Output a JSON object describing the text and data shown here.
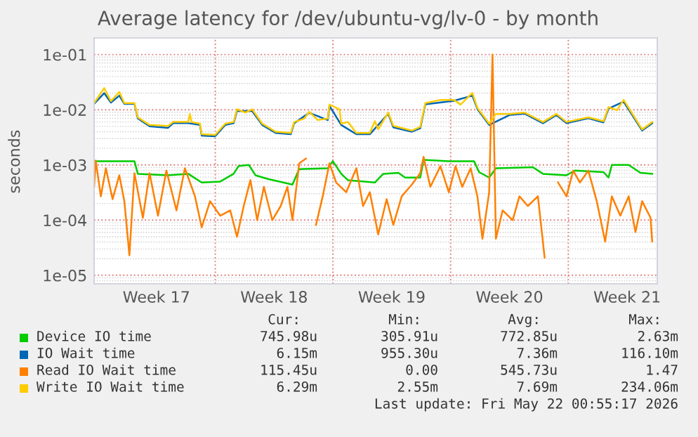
{
  "chart_data": {
    "type": "line",
    "title": "Average latency for /dev/ubuntu-vg/lv-0 - by month",
    "ylabel": "seconds",
    "log": "y",
    "grid": true,
    "legend": "bottom",
    "xlim": [
      "2026-04-18T19:00",
      "2026-05-22T07:00"
    ],
    "ylim": [
      7e-06,
      0.2
    ],
    "xticks": [
      {
        "value": "2026-04-22T12:00",
        "label": "Week 17"
      },
      {
        "value": "2026-04-26",
        "label": null
      },
      {
        "value": "2026-04-29T12:00",
        "label": "Week 18"
      },
      {
        "value": "2026-05-03",
        "label": null
      },
      {
        "value": "2026-05-06T12:00",
        "label": "Week 19"
      },
      {
        "value": "2026-05-10",
        "label": null
      },
      {
        "value": "2026-05-13T12:00",
        "label": "Week 20"
      },
      {
        "value": "2026-05-17",
        "label": null
      },
      {
        "value": "2026-05-20T12:00",
        "label": "Week 21"
      }
    ],
    "yticks": [
      {
        "value": 1e-05,
        "label": "1e-05"
      },
      {
        "value": 0.0001,
        "label": "1e-04"
      },
      {
        "value": 0.001,
        "label": "1e-03"
      },
      {
        "value": 0.01,
        "label": "1e-02"
      },
      {
        "value": 0.1,
        "label": "1e-01"
      }
    ],
    "series": [
      {
        "name": "Device IO time",
        "color": "#00cc00",
        "x": [
          "2026-04-18T19:00",
          "2026-04-21T04:36",
          "2026-04-21T09:24",
          "2026-04-23T04:36",
          "2026-04-24T09:24",
          "2026-04-25T04:36",
          "2026-04-26T07:00",
          "2026-04-27T02:12",
          "2026-04-27T09:24",
          "2026-04-27T23:48",
          "2026-04-28T09:24",
          "2026-04-29T02:12",
          "2026-04-30T14:12",
          "2026-04-30T23:48",
          "2026-05-02T16:36",
          "2026-05-02T23:48",
          "2026-05-03T11:48",
          "2026-05-03T21:24",
          "2026-05-05T11:48",
          "2026-05-05T23:48",
          "2026-05-06T21:24",
          "2026-05-07T07:00",
          "2026-05-08T04:36",
          "2026-05-08T09:24",
          "2026-05-09T21:24",
          "2026-05-11T09:24",
          "2026-05-11T16:36",
          "2026-05-12T07:00",
          "2026-05-12T16:36",
          "2026-05-14T21:24",
          "2026-05-15T11:48",
          "2026-05-16T21:24",
          "2026-05-17T09:24",
          "2026-05-19T02:12",
          "2026-05-19T09:24",
          "2026-05-19T14:12",
          "2026-05-20T14:12",
          "2026-05-21T07:00",
          "2026-05-21T23:48"
        ],
        "values": [
          0.00117,
          0.00117,
          0.00069,
          0.00065,
          0.00069,
          0.00048,
          0.0005,
          0.00069,
          0.00096,
          0.001,
          0.00065,
          0.00056,
          0.00044,
          0.00084,
          0.00087,
          0.00117,
          0.00069,
          0.00053,
          0.00048,
          0.00069,
          0.00072,
          0.00059,
          0.00059,
          0.00124,
          0.00117,
          0.00117,
          0.00074,
          0.00059,
          0.00087,
          0.00091,
          0.00069,
          0.00065,
          0.00079,
          0.00074,
          0.00059,
          0.001,
          0.001,
          0.00072,
          0.00069
        ]
      },
      {
        "name": "IO Wait time",
        "color": "#0066b3",
        "x": [
          "2026-04-18T19:00",
          "2026-04-19T09:24",
          "2026-04-19T19:00",
          "2026-04-20T07:00",
          "2026-04-20T14:12",
          "2026-04-21T04:36",
          "2026-04-21T09:24",
          "2026-04-22T02:12",
          "2026-04-23T04:36",
          "2026-04-23T11:48",
          "2026-04-24T09:24",
          "2026-04-25T02:12",
          "2026-04-25T04:36",
          "2026-04-25T23:48",
          "2026-04-26T14:12",
          "2026-04-27T02:12",
          "2026-04-27T07:00",
          "2026-04-28T04:36",
          "2026-04-28T19:00",
          "2026-04-29T14:12",
          "2026-04-30T11:48",
          "2026-04-30T16:36",
          "2026-05-01T14:12",
          "2026-05-02T16:36",
          "2026-05-02T19:00",
          "2026-05-03T11:48",
          "2026-05-04T09:24",
          "2026-05-05T04:36",
          "2026-05-06T07:00",
          "2026-05-06T14:12",
          "2026-05-07T16:36",
          "2026-05-08T04:36",
          "2026-05-08T11:48",
          "2026-05-10T04:36",
          "2026-05-11T07:00",
          "2026-05-11T14:12",
          "2026-05-12T07:00",
          "2026-05-13T11:48",
          "2026-05-14T09:24",
          "2026-05-15T11:48",
          "2026-05-16T07:00",
          "2026-05-16T21:24",
          "2026-05-18T04:36",
          "2026-05-19T02:12",
          "2026-05-19T09:24",
          "2026-05-20T07:00",
          "2026-05-20T23:48",
          "2026-05-21T09:24",
          "2026-05-21T23:48"
        ],
        "values": [
          0.0128,
          0.02,
          0.0135,
          0.018,
          0.0128,
          0.0128,
          0.007,
          0.005,
          0.0047,
          0.0057,
          0.0057,
          0.0053,
          0.0034,
          0.0033,
          0.0053,
          0.0057,
          0.0095,
          0.0095,
          0.0053,
          0.0038,
          0.0036,
          0.0057,
          0.0088,
          0.0065,
          0.0118,
          0.0053,
          0.0036,
          0.0036,
          0.0085,
          0.0048,
          0.004,
          0.0046,
          0.0125,
          0.0145,
          0.018,
          0.0103,
          0.0053,
          0.008,
          0.0085,
          0.0057,
          0.008,
          0.0057,
          0.007,
          0.0059,
          0.0105,
          0.014,
          0.0065,
          0.0042,
          0.0057
        ]
      },
      {
        "name": "Read IO Wait time",
        "color": "#ff8000",
        "x": [
          "2026-04-18T19:00",
          "2026-04-18T21:24",
          "2026-04-19T04:36",
          "2026-04-19T11:48",
          "2026-04-19T21:24",
          "2026-04-20T07:00",
          "2026-04-20T14:12",
          "2026-04-20T21:24",
          "2026-04-21T04:36",
          "2026-04-21T16:36",
          "2026-04-22T02:12",
          "2026-04-22T14:12",
          "2026-04-23T02:12",
          "2026-04-23T16:36",
          "2026-04-24T04:36",
          "2026-04-24T19:00",
          "2026-04-25T04:36",
          "2026-04-25T16:36",
          "2026-04-26T07:00",
          "2026-04-26T21:24",
          "2026-04-27T07:00",
          "2026-04-27T16:36",
          "2026-04-28T02:12",
          "2026-04-28T11:48",
          "2026-04-28T21:24",
          "2026-04-29T09:24",
          "2026-04-29T21:24",
          "2026-04-30T07:00",
          "2026-04-30T14:12",
          "2026-04-30T23:48",
          "2026-05-01T09:24",
          "2026-05-01T16:36",
          "2026-05-01T23:48",
          "2026-05-02T09:24",
          "2026-05-02T19:00",
          "2026-05-03T04:36",
          "2026-05-03T19:00",
          "2026-05-04T09:24",
          "2026-05-04T19:00",
          "2026-05-05T04:36",
          "2026-05-05T16:36",
          "2026-05-06T04:36",
          "2026-05-06T14:12",
          "2026-05-07T02:12",
          "2026-05-07T16:36",
          "2026-05-08T04:36",
          "2026-05-08T09:24",
          "2026-05-08T19:00",
          "2026-05-09T09:24",
          "2026-05-09T21:24",
          "2026-05-10T07:00",
          "2026-05-10T16:36",
          "2026-05-11T04:36",
          "2026-05-11T14:12",
          "2026-05-11T21:24",
          "2026-05-12T07:00",
          "2026-05-12T11:48",
          "2026-05-12T16:36",
          "2026-05-13T02:12",
          "2026-05-13T16:36",
          "2026-05-14T02:12",
          "2026-05-14T14:12",
          "2026-05-15T04:36",
          "2026-05-15T14:12",
          "2026-05-15T21:24",
          "2026-05-16T04:36",
          "2026-05-16T09:24",
          "2026-05-16T21:24",
          "2026-05-17T07:00",
          "2026-05-17T16:36",
          "2026-05-18T04:36",
          "2026-05-18T16:36",
          "2026-05-19T04:36",
          "2026-05-19T14:12",
          "2026-05-20T02:12",
          "2026-05-20T14:12",
          "2026-05-20T23:48",
          "2026-05-21T09:24",
          "2026-05-21T21:24",
          "2026-05-21T23:48"
        ],
        "values": [
          0.0004,
          0.0012,
          0.00027,
          0.00087,
          0.00024,
          0.00065,
          0.00022,
          2.3e-05,
          0.00071,
          0.00011,
          0.00071,
          0.00012,
          0.00079,
          0.00015,
          0.00087,
          0.00027,
          7.4e-05,
          0.00022,
          0.00012,
          0.00015,
          5e-05,
          0.00018,
          0.00053,
          0.0001,
          0.0004,
          0.0001,
          0.00018,
          0.0004,
          0.0001,
          0.00107,
          0.0013,
          null,
          8.2e-05,
          0.00027,
          0.00107,
          0.00048,
          0.00032,
          0.00087,
          0.00018,
          0.00032,
          5.5e-05,
          0.00024,
          8.2e-05,
          0.00027,
          0.00044,
          0.00071,
          0.0014,
          0.0004,
          0.00095,
          0.00032,
          0.00095,
          0.0004,
          0.00087,
          0.00027,
          4.6e-05,
          0.00032,
          0.1,
          4.6e-05,
          0.00015,
          0.0001,
          0.00027,
          0.00018,
          0.00027,
          2.1e-05,
          null,
          null,
          0.00048,
          0.00027,
          0.00079,
          0.00048,
          0.00079,
          0.00022,
          4.1e-05,
          0.00027,
          0.00012,
          0.00027,
          6.1e-05,
          0.00022,
          0.00011,
          4.1e-05
        ]
      },
      {
        "name": "Write IO Wait time",
        "color": "#ffcc00",
        "x": [
          "2026-04-18T19:00",
          "2026-04-19T09:24",
          "2026-04-19T19:00",
          "2026-04-20T07:00",
          "2026-04-20T14:12",
          "2026-04-21T04:36",
          "2026-04-21T09:24",
          "2026-04-22T02:12",
          "2026-04-23T04:36",
          "2026-04-23T11:48",
          "2026-04-24T09:24",
          "2026-04-24T11:48",
          "2026-04-24T14:12",
          "2026-04-25T02:12",
          "2026-04-25T04:36",
          "2026-04-25T23:48",
          "2026-04-26T14:12",
          "2026-04-27T02:12",
          "2026-04-27T07:00",
          "2026-04-27T19:00",
          "2026-04-28T04:36",
          "2026-04-28T19:00",
          "2026-04-29T14:12",
          "2026-04-30T11:48",
          "2026-04-30T16:36",
          "2026-05-01T07:00",
          "2026-05-01T14:12",
          "2026-05-02T02:12",
          "2026-05-02T16:36",
          "2026-05-02T19:00",
          "2026-05-03T09:24",
          "2026-05-03T11:48",
          "2026-05-03T21:24",
          "2026-05-04T09:24",
          "2026-05-05T04:36",
          "2026-05-05T11:48",
          "2026-05-05T16:36",
          "2026-05-06T07:00",
          "2026-05-06T14:12",
          "2026-05-07T16:36",
          "2026-05-08T04:36",
          "2026-05-08T11:48",
          "2026-05-09T09:24",
          "2026-05-10T04:36",
          "2026-05-10T14:12",
          "2026-05-11T07:00",
          "2026-05-11T14:12",
          "2026-05-12T07:00",
          "2026-05-12T16:36",
          "2026-05-13T11:48",
          "2026-05-14T09:24",
          "2026-05-15T11:48",
          "2026-05-16T07:00",
          "2026-05-16T21:24",
          "2026-05-18T04:36",
          "2026-05-19T02:12",
          "2026-05-19T09:24",
          "2026-05-19T21:24",
          "2026-05-20T07:00",
          "2026-05-20T23:48",
          "2026-05-21T09:24",
          "2026-05-21T23:48"
        ],
        "values": [
          0.0132,
          0.0247,
          0.0143,
          0.021,
          0.0132,
          0.0132,
          0.0073,
          0.0053,
          0.0051,
          0.006,
          0.006,
          0.0084,
          0.006,
          0.0056,
          0.0036,
          0.0035,
          0.0056,
          0.006,
          0.0102,
          0.0089,
          0.0102,
          0.0056,
          0.004,
          0.0038,
          0.006,
          0.0069,
          0.0092,
          0.0065,
          0.0069,
          0.0124,
          0.0102,
          0.0056,
          0.006,
          0.0038,
          0.0038,
          0.0062,
          0.0044,
          0.0089,
          0.0051,
          0.0042,
          0.0049,
          0.0132,
          0.0151,
          0.0151,
          0.0124,
          0.0203,
          0.0108,
          0.0056,
          0.0084,
          0.0084,
          0.0089,
          0.006,
          0.0084,
          0.006,
          0.0073,
          0.0062,
          0.0112,
          0.0098,
          0.0151,
          0.0069,
          0.0044,
          0.006
        ]
      }
    ],
    "annotations": [
      "Cur:",
      "Min:",
      "Avg:",
      "Max:",
      "745.98u",
      "305.91u",
      "772.85u",
      "2.63m",
      "6.15m",
      "955.30u",
      "7.36m",
      "116.10m",
      "115.45u",
      "0.00",
      "545.73u",
      "1.47",
      "6.29m",
      "2.55m",
      "7.69m",
      "234.06m",
      "Last update: Fri May 22 00:55:17 2026"
    ]
  }
}
